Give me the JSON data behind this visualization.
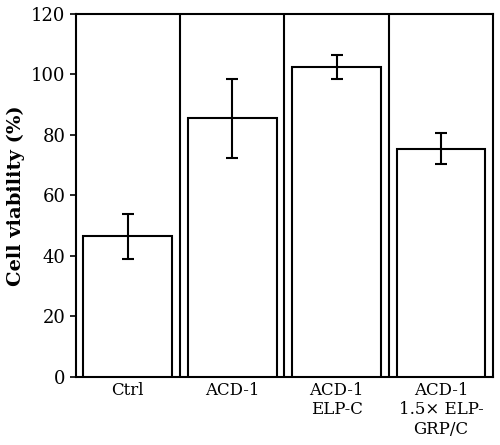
{
  "categories": [
    "Ctrl",
    "ACD-1",
    "ACD-1\nELP-C",
    "ACD-1\n1.5× ELP-\nGRP/C"
  ],
  "values": [
    46.5,
    85.5,
    102.5,
    75.5
  ],
  "errors": [
    7.5,
    13.0,
    4.0,
    5.0
  ],
  "bar_color": "#ffffff",
  "bar_edgecolor": "#000000",
  "bar_linewidth": 1.5,
  "bar_width": 0.85,
  "ylabel": "Cell viability (%)",
  "ylim": [
    0,
    120
  ],
  "yticks": [
    0,
    20,
    40,
    60,
    80,
    100,
    120
  ],
  "ylabel_fontsize": 14,
  "tick_fontsize": 13,
  "xlabel_fontsize": 12,
  "capsize": 4,
  "error_linewidth": 1.5,
  "background_color": "#ffffff",
  "font_family": "DejaVu Serif",
  "spine_linewidth": 1.5
}
